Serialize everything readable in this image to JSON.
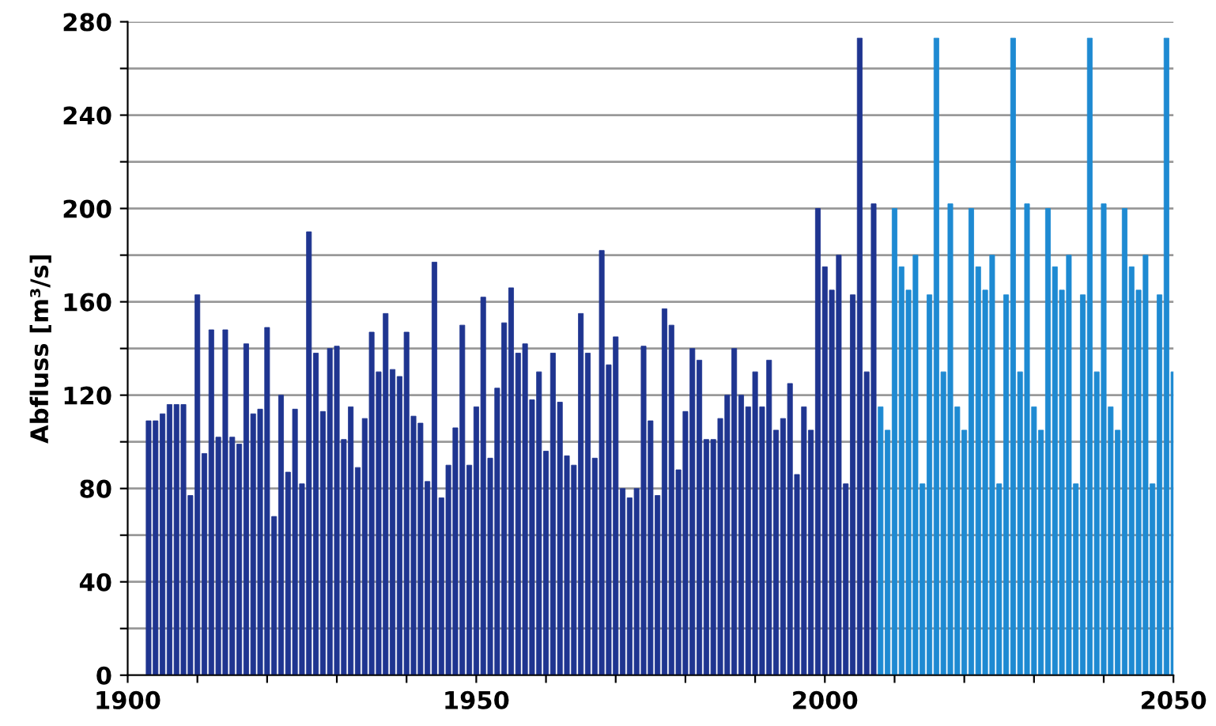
{
  "chart_data": {
    "type": "bar",
    "ylabel": "Abfluss [m³/s]",
    "xlim": [
      1900,
      2050
    ],
    "ylim": [
      0,
      280
    ],
    "xticks": [
      1900,
      {
        "value": 1910,
        "label": null
      },
      {
        "value": 1920,
        "label": null
      },
      {
        "value": 1930,
        "label": null
      },
      {
        "value": 1940,
        "label": null
      },
      1950,
      {
        "value": 1960,
        "label": null
      },
      {
        "value": 1970,
        "label": null
      },
      {
        "value": 1980,
        "label": null
      },
      {
        "value": 1990,
        "label": null
      },
      2000,
      {
        "value": 2010,
        "label": null
      },
      {
        "value": 2020,
        "label": null
      },
      {
        "value": 2030,
        "label": null
      },
      {
        "value": 2040,
        "label": null
      },
      2050
    ],
    "yticks": [
      0,
      {
        "value": 20,
        "label": null
      },
      40,
      {
        "value": 60,
        "label": null
      },
      80,
      {
        "value": 100,
        "label": null
      },
      120,
      {
        "value": 140,
        "label": null
      },
      160,
      {
        "value": 180,
        "label": null
      },
      200,
      {
        "value": 220,
        "label": null
      },
      240,
      {
        "value": 260,
        "label": null
      },
      280
    ],
    "grid": "y",
    "series": [
      {
        "color": "#1f3590",
        "x": [
          1903,
          1904,
          1905,
          1906,
          1907,
          1908,
          1909,
          1910,
          1911,
          1912,
          1913,
          1914,
          1915,
          1916,
          1917,
          1918,
          1919,
          1920,
          1921,
          1922,
          1923,
          1924,
          1925,
          1926,
          1927,
          1928,
          1929,
          1930,
          1931,
          1932,
          1933,
          1934,
          1935,
          1936,
          1937,
          1938,
          1939,
          1940,
          1941,
          1942,
          1943,
          1944,
          1945,
          1946,
          1947,
          1948,
          1949,
          1950,
          1951,
          1952,
          1953,
          1954,
          1955,
          1956,
          1957,
          1958,
          1959,
          1960,
          1961,
          1962,
          1963,
          1964,
          1965,
          1966,
          1967,
          1968,
          1969,
          1970,
          1971,
          1972,
          1973,
          1974,
          1975,
          1976,
          1977,
          1978,
          1979,
          1980,
          1981,
          1982,
          1983,
          1984,
          1985,
          1986,
          1987,
          1988,
          1989,
          1990,
          1991,
          1992,
          1993,
          1994,
          1995,
          1996,
          1997,
          1998,
          1999,
          2000,
          2001,
          2002,
          2003,
          2004,
          2005,
          2006,
          2007
        ],
        "values": [
          109,
          109,
          112,
          116,
          116,
          116,
          77,
          163,
          95,
          148,
          102,
          148,
          102,
          99,
          142,
          112,
          114,
          149,
          68,
          120,
          87,
          114,
          82,
          190,
          138,
          113,
          140,
          141,
          101,
          115,
          89,
          110,
          147,
          130,
          155,
          131,
          128,
          147,
          111,
          108,
          83,
          177,
          76,
          90,
          106,
          150,
          90,
          115,
          162,
          93,
          123,
          151,
          166,
          138,
          142,
          118,
          130,
          96,
          138,
          117,
          94,
          90,
          155,
          138,
          93,
          182,
          133,
          145,
          80,
          76,
          80,
          141,
          109,
          77,
          157,
          150,
          88,
          113,
          140,
          135,
          101,
          101,
          110,
          120,
          140,
          120,
          115,
          130,
          115,
          135,
          105,
          110,
          125,
          86,
          115,
          105,
          200,
          175,
          165,
          180,
          82,
          163,
          273,
          130,
          202
        ]
      },
      {
        "color": "#1e8ad2",
        "x": [
          2008,
          2009,
          2010,
          2011,
          2012,
          2013,
          2014,
          2015,
          2016,
          2017,
          2018,
          2019,
          2020,
          2021,
          2022,
          2023,
          2024,
          2025,
          2026,
          2027,
          2028,
          2029,
          2030,
          2031,
          2032,
          2033,
          2034,
          2035,
          2036,
          2037,
          2038,
          2039,
          2040,
          2041,
          2042,
          2043,
          2044,
          2045,
          2046,
          2047,
          2048,
          2049,
          2050
        ],
        "values": [
          115,
          105,
          200,
          175,
          165,
          180,
          82,
          163,
          273,
          130,
          202,
          115,
          105,
          200,
          175,
          165,
          180,
          82,
          163,
          273,
          130,
          202,
          115,
          105,
          200,
          175,
          165,
          180,
          82,
          163,
          273,
          130,
          202,
          115,
          105,
          200,
          175,
          165,
          180,
          82,
          163,
          273,
          130
        ]
      }
    ]
  }
}
